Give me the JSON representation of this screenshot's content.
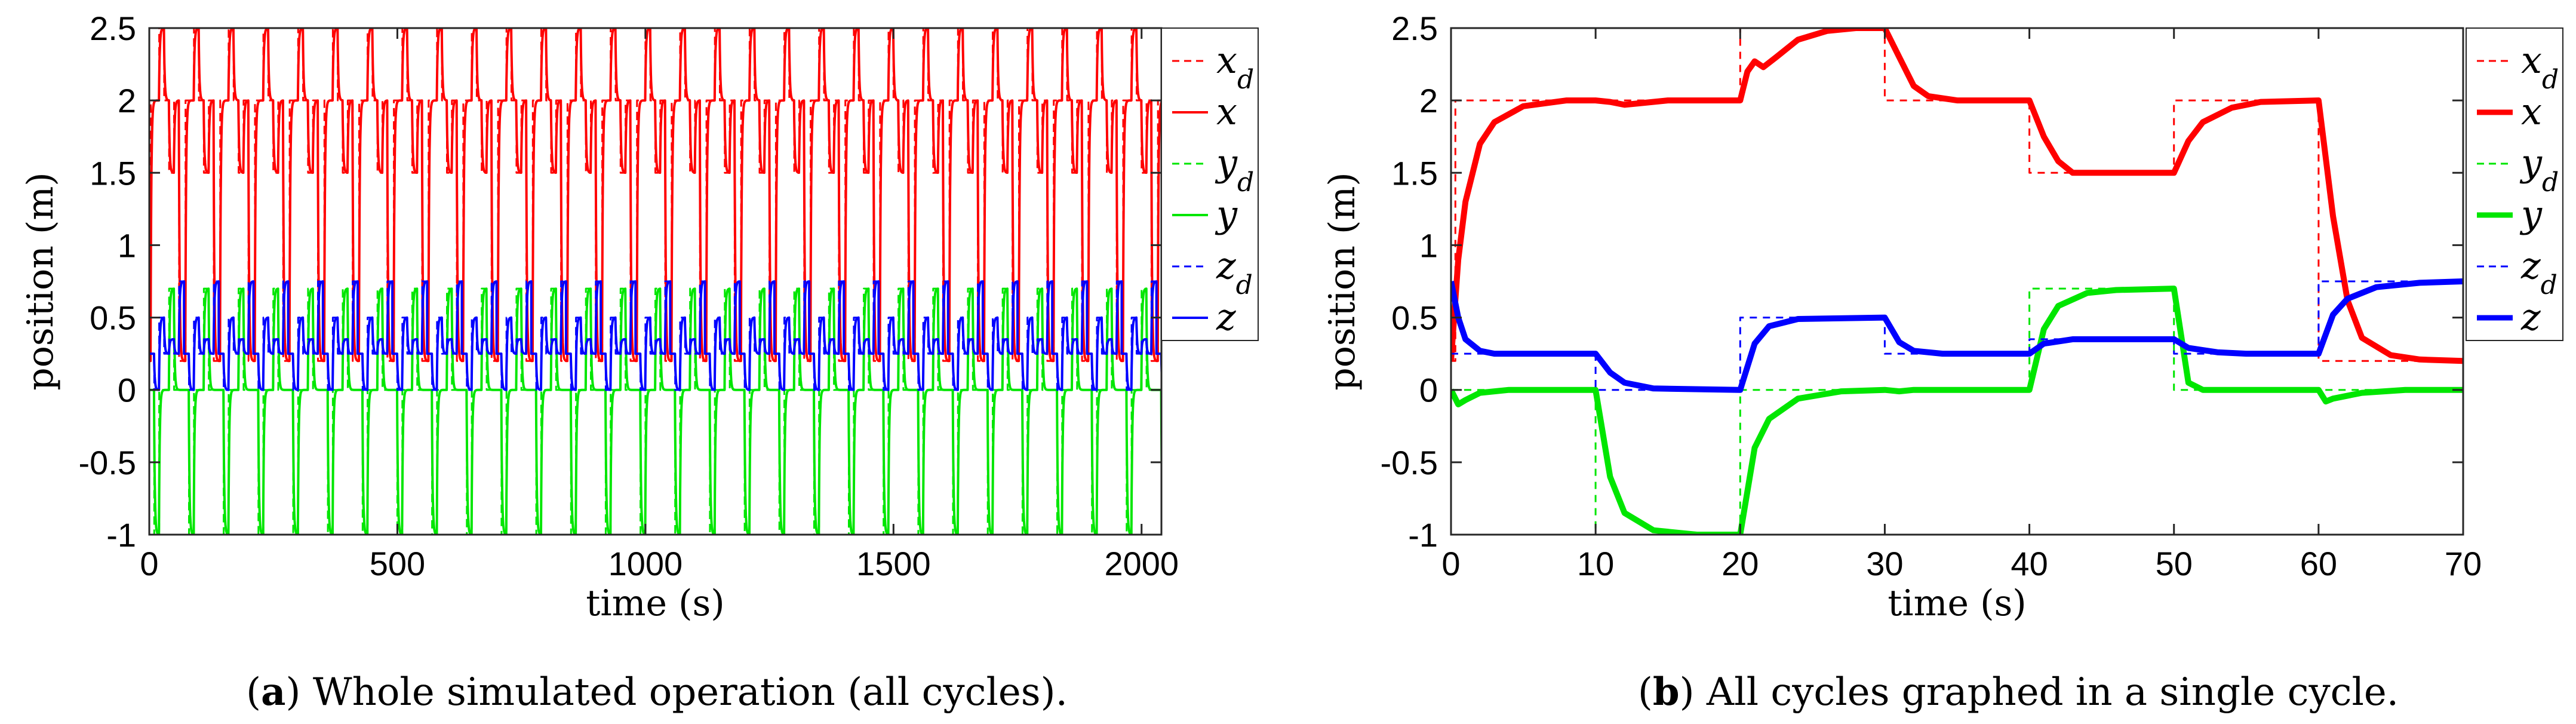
{
  "chart_data": [
    {
      "type": "line",
      "id": "a",
      "xlabel": "time (s)",
      "ylabel": "position (m)",
      "xlim": [
        0,
        2040
      ],
      "ylim": [
        -1,
        2.5
      ],
      "xticks": [
        0,
        500,
        1000,
        1500,
        2000
      ],
      "yticks": [
        -1,
        -0.5,
        0,
        0.5,
        1,
        1.5,
        2,
        2.5
      ],
      "xtick_labels": [
        "0",
        "500",
        "1000",
        "1500",
        "2000"
      ],
      "ytick_labels": [
        "-1",
        "-0.5",
        "0",
        "0.5",
        "1",
        "1.5",
        "2",
        "2.5"
      ],
      "cycle_period": 70,
      "caption_letter": "a",
      "caption_text": " Whole simulated operation (all cycles).",
      "legend": [
        "x_d",
        "x",
        "y_d",
        "y",
        "z_d",
        "z"
      ],
      "series": [
        {
          "name": "x_d",
          "color": "#ff0000",
          "dashed": true,
          "steps": [
            [
              0,
              0.2
            ],
            [
              3,
              2.0
            ],
            [
              20,
              2.5
            ],
            [
              30,
              2.0
            ],
            [
              40,
              1.5
            ],
            [
              50,
              2.0
            ],
            [
              60,
              0.2
            ]
          ]
        },
        {
          "name": "x",
          "color": "#ff0000",
          "dashed": false,
          "tau": 1.5
        },
        {
          "name": "y_d",
          "color": "#00e600",
          "dashed": true,
          "steps": [
            [
              0,
              0
            ],
            [
              10,
              -1
            ],
            [
              20,
              0
            ],
            [
              40,
              0.7
            ],
            [
              50,
              0
            ],
            [
              60,
              0
            ]
          ]
        },
        {
          "name": "y",
          "color": "#00e600",
          "dashed": false,
          "tau": 1.5
        },
        {
          "name": "z_d",
          "color": "#0000ff",
          "dashed": true,
          "steps": [
            [
              0,
              0.25
            ],
            [
              10,
              0
            ],
            [
              20,
              0.5
            ],
            [
              30,
              0.25
            ],
            [
              40,
              0.35
            ],
            [
              50,
              0.25
            ],
            [
              60,
              0.75
            ]
          ]
        },
        {
          "name": "z",
          "color": "#0000ff",
          "dashed": false,
          "tau": 1.5
        }
      ]
    },
    {
      "type": "line",
      "id": "b",
      "xlabel": "time (s)",
      "ylabel": "position (m)",
      "xlim": [
        0,
        70
      ],
      "ylim": [
        -1,
        2.5
      ],
      "xticks": [
        0,
        10,
        20,
        30,
        40,
        50,
        60,
        70
      ],
      "yticks": [
        -1,
        -0.5,
        0,
        0.5,
        1,
        1.5,
        2,
        2.5
      ],
      "xtick_labels": [
        "0",
        "10",
        "20",
        "30",
        "40",
        "50",
        "60",
        "70"
      ],
      "ytick_labels": [
        "-1",
        "-0.5",
        "0",
        "0.5",
        "1",
        "1.5",
        "2",
        "2.5"
      ],
      "caption_letter": "b",
      "caption_text": " All cycles graphed in a single cycle.",
      "legend": [
        "x_d",
        "x",
        "y_d",
        "y",
        "z_d",
        "z"
      ],
      "series": [
        {
          "name": "x_d",
          "color": "#ff0000",
          "dashed": true,
          "steps": [
            [
              0,
              0.2
            ],
            [
              0.3,
              2.0
            ],
            [
              20,
              2.5
            ],
            [
              30,
              2.0
            ],
            [
              40,
              1.5
            ],
            [
              50,
              2.0
            ],
            [
              60,
              0.2
            ]
          ]
        },
        {
          "name": "x",
          "color": "#ff0000",
          "dashed": false,
          "points": [
            [
              0,
              0.2
            ],
            [
              0.5,
              0.9
            ],
            [
              1,
              1.3
            ],
            [
              2,
              1.7
            ],
            [
              3,
              1.85
            ],
            [
              5,
              1.96
            ],
            [
              8,
              2.0
            ],
            [
              10,
              2.0
            ],
            [
              11,
              1.99
            ],
            [
              12,
              1.97
            ],
            [
              13,
              1.98
            ],
            [
              15,
              2.0
            ],
            [
              20,
              2.0
            ],
            [
              20.5,
              2.2
            ],
            [
              21,
              2.27
            ],
            [
              21.6,
              2.23
            ],
            [
              22.5,
              2.3
            ],
            [
              24,
              2.42
            ],
            [
              26,
              2.48
            ],
            [
              28,
              2.5
            ],
            [
              30,
              2.5
            ],
            [
              31,
              2.3
            ],
            [
              32,
              2.1
            ],
            [
              33,
              2.03
            ],
            [
              35,
              2.0
            ],
            [
              40,
              2.0
            ],
            [
              41,
              1.75
            ],
            [
              42,
              1.58
            ],
            [
              43,
              1.5
            ],
            [
              45,
              1.5
            ],
            [
              50,
              1.5
            ],
            [
              51,
              1.72
            ],
            [
              52,
              1.85
            ],
            [
              54,
              1.95
            ],
            [
              56,
              1.99
            ],
            [
              60,
              2.0
            ],
            [
              61,
              1.2
            ],
            [
              62,
              0.62
            ],
            [
              63,
              0.36
            ],
            [
              65,
              0.24
            ],
            [
              67,
              0.21
            ],
            [
              70,
              0.2
            ]
          ]
        },
        {
          "name": "y_d",
          "color": "#00e600",
          "dashed": true,
          "steps": [
            [
              0,
              0
            ],
            [
              10,
              -1
            ],
            [
              20,
              0
            ],
            [
              40,
              0.7
            ],
            [
              50,
              0
            ],
            [
              60,
              0
            ]
          ]
        },
        {
          "name": "y",
          "color": "#00e600",
          "dashed": false,
          "points": [
            [
              0,
              0
            ],
            [
              0.5,
              -0.1
            ],
            [
              1,
              -0.07
            ],
            [
              2,
              -0.02
            ],
            [
              4,
              0
            ],
            [
              10,
              0
            ],
            [
              11,
              -0.6
            ],
            [
              12,
              -0.85
            ],
            [
              14,
              -0.97
            ],
            [
              17,
              -1.0
            ],
            [
              20,
              -1.0
            ],
            [
              21,
              -0.4
            ],
            [
              22,
              -0.2
            ],
            [
              24,
              -0.06
            ],
            [
              27,
              -0.01
            ],
            [
              30,
              0
            ],
            [
              31,
              -0.01
            ],
            [
              32,
              0
            ],
            [
              40,
              0
            ],
            [
              41,
              0.42
            ],
            [
              42,
              0.58
            ],
            [
              44,
              0.67
            ],
            [
              46,
              0.69
            ],
            [
              50,
              0.7
            ],
            [
              51,
              0.05
            ],
            [
              52,
              0
            ],
            [
              60,
              0
            ],
            [
              60.5,
              -0.08
            ],
            [
              61,
              -0.06
            ],
            [
              63,
              -0.02
            ],
            [
              66,
              0
            ],
            [
              70,
              0
            ]
          ]
        },
        {
          "name": "z_d",
          "color": "#0000ff",
          "dashed": true,
          "steps": [
            [
              0,
              0.25
            ],
            [
              10,
              0
            ],
            [
              20,
              0.5
            ],
            [
              30,
              0.25
            ],
            [
              40,
              0.35
            ],
            [
              50,
              0.25
            ],
            [
              60,
              0.75
            ]
          ]
        },
        {
          "name": "z",
          "color": "#0000ff",
          "dashed": false,
          "points": [
            [
              0,
              0.75
            ],
            [
              0.5,
              0.5
            ],
            [
              1,
              0.35
            ],
            [
              2,
              0.27
            ],
            [
              3,
              0.25
            ],
            [
              10,
              0.25
            ],
            [
              11,
              0.12
            ],
            [
              12,
              0.05
            ],
            [
              14,
              0.01
            ],
            [
              20,
              0
            ],
            [
              21,
              0.32
            ],
            [
              22,
              0.44
            ],
            [
              24,
              0.49
            ],
            [
              30,
              0.5
            ],
            [
              31,
              0.33
            ],
            [
              32,
              0.27
            ],
            [
              34,
              0.25
            ],
            [
              40,
              0.25
            ],
            [
              41,
              0.32
            ],
            [
              43,
              0.35
            ],
            [
              50,
              0.35
            ],
            [
              51,
              0.29
            ],
            [
              53,
              0.26
            ],
            [
              55,
              0.25
            ],
            [
              60,
              0.25
            ],
            [
              61,
              0.52
            ],
            [
              62,
              0.63
            ],
            [
              64,
              0.71
            ],
            [
              67,
              0.74
            ],
            [
              70,
              0.75
            ]
          ]
        }
      ]
    }
  ]
}
